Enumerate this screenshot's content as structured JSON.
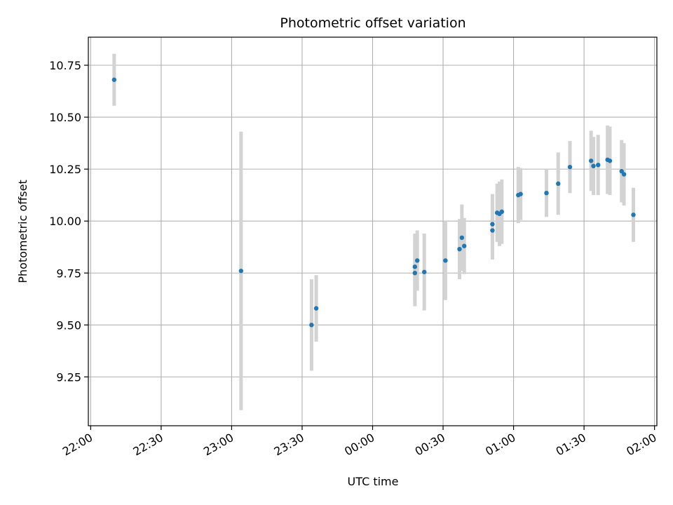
{
  "chart_data": {
    "type": "scatter",
    "title": "Photometric offset variation",
    "xlabel": "UTC time",
    "ylabel": "Photometric offset",
    "grid": true,
    "xlim": [
      "21:59",
      "02:01"
    ],
    "ylim": [
      9.015,
      10.885
    ],
    "xticks": [
      "22:00",
      "22:30",
      "23:00",
      "23:30",
      "00:00",
      "00:30",
      "01:00",
      "01:30",
      "02:00"
    ],
    "yticks": [
      "9.25",
      "9.50",
      "9.75",
      "10.00",
      "10.25",
      "10.50",
      "10.75"
    ],
    "colors": {
      "point": "#1f77b4",
      "errorbar": "#d3d3d3",
      "grid": "#b0b0b0"
    },
    "points": [
      {
        "x": "22:10",
        "y": 10.68,
        "err": 0.125
      },
      {
        "x": "23:04",
        "y": 9.76,
        "err": 0.67
      },
      {
        "x": "23:34",
        "y": 9.5,
        "err": 0.22
      },
      {
        "x": "23:36",
        "y": 9.58,
        "err": 0.16
      },
      {
        "x": "00:18",
        "y": 9.75,
        "err": 0.16
      },
      {
        "x": "00:18",
        "y": 9.78,
        "err": 0.16
      },
      {
        "x": "00:19",
        "y": 9.81,
        "err": 0.145
      },
      {
        "x": "00:22",
        "y": 9.755,
        "err": 0.185
      },
      {
        "x": "00:31",
        "y": 9.81,
        "err": 0.19
      },
      {
        "x": "00:37",
        "y": 9.865,
        "err": 0.145
      },
      {
        "x": "00:38",
        "y": 9.92,
        "err": 0.16
      },
      {
        "x": "00:39",
        "y": 9.88,
        "err": 0.135
      },
      {
        "x": "00:51",
        "y": 9.955,
        "err": 0.14
      },
      {
        "x": "00:51",
        "y": 9.985,
        "err": 0.145
      },
      {
        "x": "00:53",
        "y": 10.04,
        "err": 0.14
      },
      {
        "x": "00:54",
        "y": 10.035,
        "err": 0.155
      },
      {
        "x": "00:55",
        "y": 10.045,
        "err": 0.155
      },
      {
        "x": "01:02",
        "y": 10.125,
        "err": 0.135
      },
      {
        "x": "01:03",
        "y": 10.13,
        "err": 0.125
      },
      {
        "x": "01:14",
        "y": 10.135,
        "err": 0.115
      },
      {
        "x": "01:19",
        "y": 10.18,
        "err": 0.15
      },
      {
        "x": "01:24",
        "y": 10.26,
        "err": 0.125
      },
      {
        "x": "01:33",
        "y": 10.29,
        "err": 0.145
      },
      {
        "x": "01:34",
        "y": 10.265,
        "err": 0.14
      },
      {
        "x": "01:36",
        "y": 10.27,
        "err": 0.145
      },
      {
        "x": "01:40",
        "y": 10.295,
        "err": 0.165
      },
      {
        "x": "01:41",
        "y": 10.29,
        "err": 0.165
      },
      {
        "x": "01:46",
        "y": 10.24,
        "err": 0.15
      },
      {
        "x": "01:47",
        "y": 10.225,
        "err": 0.15
      },
      {
        "x": "01:51",
        "y": 10.03,
        "err": 0.13
      }
    ]
  }
}
